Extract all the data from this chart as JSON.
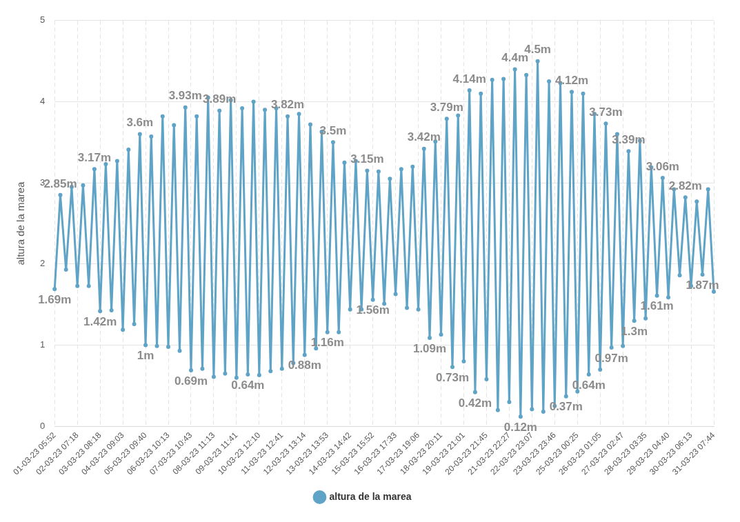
{
  "chart_data": {
    "type": "line",
    "ylabel": "altura de la marea",
    "categories": [
      "01-03-23 05:52",
      null,
      null,
      null,
      "02-03-23 07:18",
      null,
      null,
      null,
      "03-03-23 08:18",
      null,
      null,
      null,
      "04-03-23 09:03",
      null,
      null,
      null,
      "05-03-23 09:40",
      null,
      null,
      null,
      "06-03-23 10:13",
      null,
      null,
      null,
      "07-03-23 10:43",
      null,
      null,
      null,
      "08-03-23 11:13",
      null,
      null,
      null,
      "09-03-23 11:41",
      null,
      null,
      null,
      "10-03-23 12:10",
      null,
      null,
      null,
      "11-03-23 12:41",
      null,
      null,
      null,
      "12-03-23 13:14",
      null,
      null,
      null,
      "13-03-23 13:53",
      null,
      null,
      null,
      "14-03-23 14:42",
      null,
      null,
      null,
      "15-03-23 15:52",
      null,
      null,
      null,
      "16-03-23 17:33",
      null,
      null,
      null,
      "17-03-23 19:06",
      null,
      null,
      null,
      "18-03-23 20:11",
      null,
      null,
      null,
      "19-03-23 21:01",
      null,
      null,
      null,
      "20-03-23 21:45",
      null,
      null,
      null,
      "21-03-23 22:27",
      null,
      null,
      null,
      "22-03-23 23:07",
      null,
      null,
      null,
      "23-03-23 23:46",
      null,
      null,
      null,
      "25-03-23 00:25",
      null,
      null,
      null,
      "26-03-23 01:05",
      null,
      null,
      null,
      "27-03-23 02:47",
      null,
      null,
      null,
      "28-03-23 03:35",
      null,
      null,
      null,
      "29-03-23 04:40",
      null,
      null,
      null,
      "30-03-23 06:13",
      null,
      null,
      null,
      "31-03-23 07:44"
    ],
    "series": [
      {
        "name": "altura de la marea",
        "color": "#5fa3c6",
        "values": [
          1.69,
          2.85,
          1.93,
          2.95,
          1.73,
          2.97,
          1.73,
          3.17,
          1.42,
          3.23,
          1.43,
          3.27,
          1.19,
          3.41,
          1.26,
          3.6,
          1,
          3.57,
          0.99,
          3.82,
          0.98,
          3.71,
          0.93,
          3.93,
          0.69,
          3.82,
          0.71,
          4.05,
          0.61,
          3.89,
          0.65,
          4.02,
          0.6,
          3.92,
          0.64,
          4.0,
          0.63,
          3.9,
          0.68,
          3.92,
          0.71,
          3.82,
          0.78,
          3.85,
          0.88,
          3.72,
          0.96,
          3.63,
          1.16,
          3.5,
          1.16,
          3.25,
          1.44,
          3.27,
          1.44,
          3.15,
          1.56,
          3.14,
          1.51,
          3.05,
          1.63,
          3.17,
          1.46,
          3.2,
          1.44,
          3.42,
          1.09,
          3.51,
          1.13,
          3.79,
          0.73,
          3.83,
          0.8,
          4.14,
          0.42,
          4.1,
          0.58,
          4.27,
          0.2,
          4.28,
          0.3,
          4.4,
          0.12,
          4.33,
          0.21,
          4.5,
          0.18,
          4.25,
          0.25,
          4.23,
          0.37,
          4.12,
          0.43,
          4.1,
          0.64,
          3.85,
          0.7,
          3.73,
          0.97,
          3.6,
          0.99,
          3.39,
          1.3,
          3.52,
          1.33,
          3.19,
          1.61,
          3.06,
          1.59,
          2.92,
          1.86,
          2.82,
          1.73,
          2.77,
          1.87,
          2.92,
          1.66
        ],
        "value_labels": [
          "1.69m",
          "2.85m",
          null,
          null,
          null,
          null,
          null,
          "3.17m",
          "1.42m",
          null,
          null,
          null,
          null,
          null,
          null,
          "3.6m",
          "1m",
          null,
          null,
          null,
          null,
          null,
          null,
          "3.93m",
          "0.69m",
          null,
          null,
          null,
          null,
          "3.89m",
          null,
          null,
          null,
          null,
          "0.64m",
          null,
          null,
          null,
          null,
          null,
          null,
          "3.82m",
          null,
          null,
          "0.88m",
          null,
          null,
          null,
          "1.16m",
          "3.5m",
          null,
          null,
          null,
          null,
          null,
          "3.15m",
          "1.56m",
          null,
          null,
          null,
          null,
          null,
          null,
          null,
          null,
          "3.42m",
          "1.09m",
          null,
          null,
          "3.79m",
          "0.73m",
          null,
          null,
          "4.14m",
          "0.42m",
          null,
          null,
          null,
          null,
          null,
          null,
          "4.4m",
          "0.12m",
          null,
          null,
          "4.5m",
          null,
          null,
          null,
          null,
          "0.37m",
          "4.12m",
          null,
          null,
          "0.64m",
          null,
          null,
          "3.73m",
          "0.97m",
          null,
          null,
          "3.39m",
          "1.3m",
          null,
          null,
          null,
          "1.61m",
          "3.06m",
          null,
          null,
          null,
          "2.82m",
          null,
          null,
          "1.87m",
          null,
          null
        ]
      }
    ],
    "ylim": [
      0,
      5
    ],
    "yticks": [
      0,
      1,
      2,
      3,
      4,
      5
    ],
    "grid": true,
    "legend": "bottom",
    "marker": "circle",
    "line_style": "solid"
  }
}
